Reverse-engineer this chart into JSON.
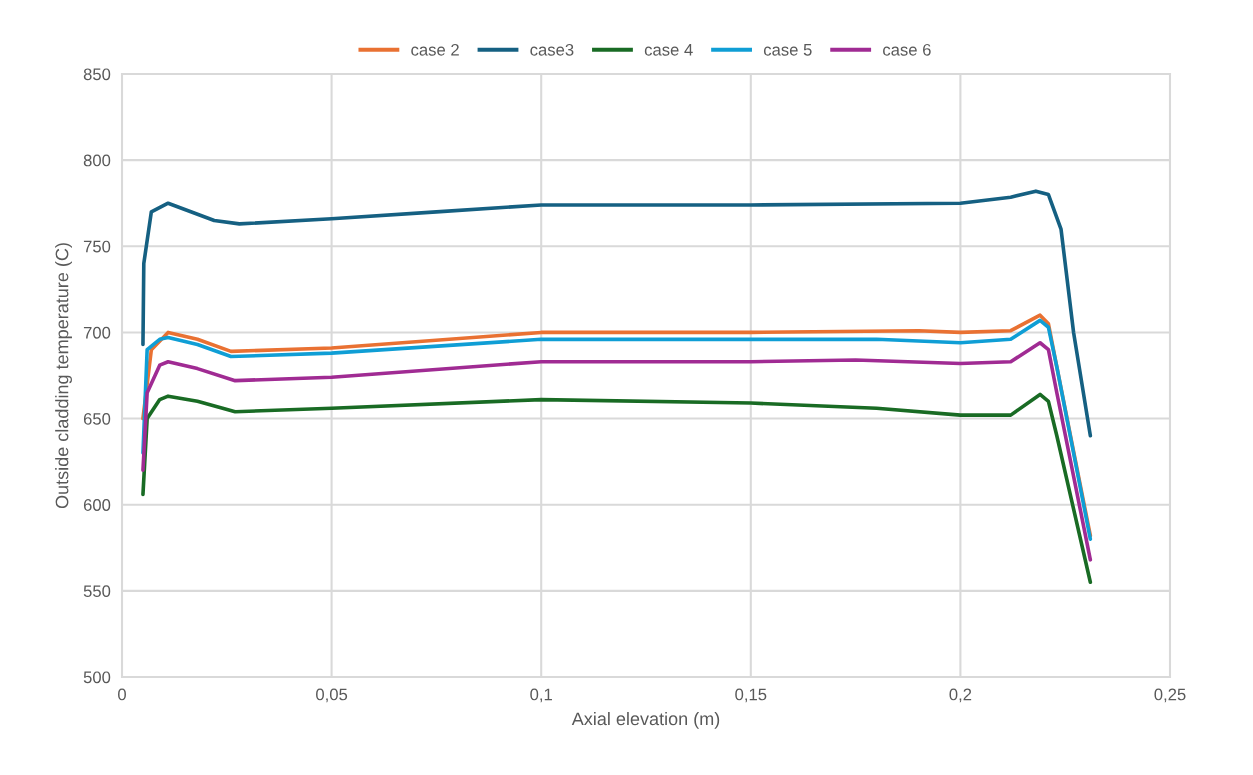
{
  "chart_data": {
    "type": "line",
    "xlabel": "Axial elevation (m)",
    "ylabel": "Outside cladding temperature (C)",
    "xlim": [
      0,
      0.25
    ],
    "ylim": [
      500,
      850
    ],
    "xticks": [
      0,
      {
        "value": 0.05,
        "label": "0,05"
      },
      {
        "value": 0.1,
        "label": "0,1"
      },
      {
        "value": 0.15,
        "label": "0,15"
      },
      {
        "value": 0.2,
        "label": "0,2"
      },
      {
        "value": 0.25,
        "label": "0,25"
      }
    ],
    "yticks": [
      500,
      550,
      600,
      650,
      700,
      750,
      800,
      850
    ],
    "grid": true,
    "legend": "top",
    "marker": "none",
    "line_style": "solid",
    "series": [
      {
        "name": "case 2",
        "color": "#e97132",
        "x": [
          0.005,
          0.007,
          0.011,
          0.018,
          0.026,
          0.05,
          0.1,
          0.15,
          0.19,
          0.2,
          0.212,
          0.219,
          0.221,
          0.223,
          0.231
        ],
        "values": [
          650,
          690,
          700,
          696,
          689,
          691,
          700,
          700,
          701,
          700,
          701,
          710,
          705,
          680,
          582
        ]
      },
      {
        "name": "case3",
        "color": "#156082",
        "x": [
          0.005,
          0.0052,
          0.007,
          0.011,
          0.022,
          0.028,
          0.05,
          0.075,
          0.1,
          0.15,
          0.2,
          0.212,
          0.218,
          0.221,
          0.224,
          0.227,
          0.231
        ],
        "values": [
          693,
          740,
          770,
          775,
          765,
          763,
          766,
          770,
          774,
          774,
          775,
          778.5,
          782,
          780,
          760,
          700,
          640
        ]
      },
      {
        "name": "case 4",
        "color": "#196b24",
        "x": [
          0.005,
          0.006,
          0.009,
          0.011,
          0.018,
          0.027,
          0.05,
          0.1,
          0.15,
          0.18,
          0.2,
          0.212,
          0.219,
          0.221,
          0.223,
          0.231
        ],
        "values": [
          606,
          650,
          661,
          663,
          660,
          654,
          656,
          661,
          659,
          656,
          652,
          652,
          664,
          660,
          640,
          555
        ]
      },
      {
        "name": "case 5",
        "color": "#0f9ed5",
        "x": [
          0.005,
          0.006,
          0.009,
          0.011,
          0.018,
          0.026,
          0.05,
          0.1,
          0.15,
          0.18,
          0.2,
          0.212,
          0.219,
          0.221,
          0.223,
          0.231
        ],
        "values": [
          630,
          690,
          696,
          697,
          693,
          686,
          688,
          696,
          696,
          696,
          694,
          696,
          707,
          703,
          680,
          580
        ]
      },
      {
        "name": "case 6",
        "color": "#a02b93",
        "x": [
          0.005,
          0.006,
          0.009,
          0.011,
          0.018,
          0.027,
          0.05,
          0.1,
          0.15,
          0.175,
          0.2,
          0.212,
          0.219,
          0.221,
          0.223,
          0.231
        ],
        "values": [
          620,
          665,
          681,
          683,
          679,
          672,
          674,
          683,
          683,
          684,
          682,
          683,
          694,
          690,
          665,
          568
        ]
      }
    ]
  }
}
